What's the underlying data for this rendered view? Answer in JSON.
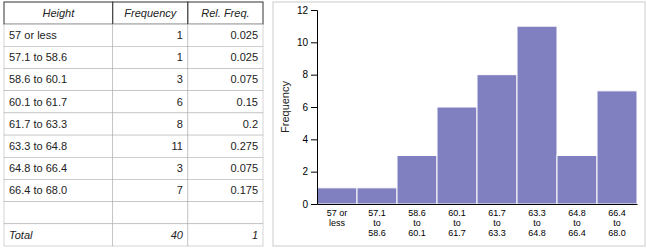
{
  "chart_data": [
    {
      "type": "table",
      "columns": [
        "Height",
        "Frequency",
        "Rel. Freq."
      ],
      "rows": [
        [
          "57 or less",
          "1",
          "0.025"
        ],
        [
          "57.1 to 58.6",
          "1",
          "0.025"
        ],
        [
          "58.6 to 60.1",
          "3",
          "0.075"
        ],
        [
          "60.1 to 61.7",
          "6",
          "0.15"
        ],
        [
          "61.7 to 63.3",
          "8",
          "0.2"
        ],
        [
          "63.3 to 64.8",
          "11",
          "0.275"
        ],
        [
          "64.8 to 66.4",
          "3",
          "0.075"
        ],
        [
          "66.4 to 68.0",
          "7",
          "0.175"
        ]
      ],
      "total_row": [
        "Total",
        "40",
        "1"
      ]
    },
    {
      "type": "bar",
      "categories": [
        [
          "57 or",
          "less"
        ],
        [
          "57.1",
          "to",
          "58.6"
        ],
        [
          "58.6",
          "to",
          "60.1"
        ],
        [
          "60.1",
          "to",
          "61.7"
        ],
        [
          "61.7",
          "to",
          "63.3"
        ],
        [
          "63.3",
          "to",
          "64.8"
        ],
        [
          "64.8",
          "to",
          "66.4"
        ],
        [
          "66.4",
          "to",
          "68.0"
        ]
      ],
      "values": [
        1,
        1,
        3,
        6,
        8,
        11,
        3,
        7
      ],
      "color": "#8080c0",
      "ylabel": "Frequency",
      "ylim": [
        0,
        12
      ],
      "yticks": [
        0,
        2,
        4,
        6,
        8,
        10,
        12
      ],
      "grid": false
    }
  ]
}
